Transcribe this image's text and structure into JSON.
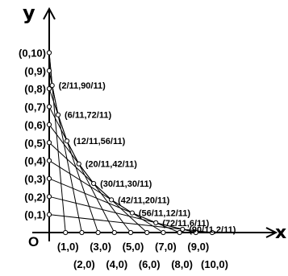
{
  "axes": {
    "x_label": "x",
    "y_label": "y",
    "origin_label": "O"
  },
  "x_points": [
    {
      "label": "(1,0)",
      "value": 1
    },
    {
      "label": "(2,0)",
      "value": 2
    },
    {
      "label": "(3,0)",
      "value": 3
    },
    {
      "label": "(4,0)",
      "value": 4
    },
    {
      "label": "(5,0)",
      "value": 5
    },
    {
      "label": "(6,0)",
      "value": 6
    },
    {
      "label": "(7,0)",
      "value": 7
    },
    {
      "label": "(8,0)",
      "value": 8
    },
    {
      "label": "(9,0)",
      "value": 9
    },
    {
      "label": "(10,0)",
      "value": 10
    }
  ],
  "y_points": [
    {
      "label": "(0,1)",
      "value": 1
    },
    {
      "label": "(0,2)",
      "value": 2
    },
    {
      "label": "(0,3)",
      "value": 3
    },
    {
      "label": "(0,4)",
      "value": 4
    },
    {
      "label": "(0,5)",
      "value": 5
    },
    {
      "label": "(0,6)",
      "value": 6
    },
    {
      "label": "(0,7)",
      "value": 7
    },
    {
      "label": "(0,8)",
      "value": 8
    },
    {
      "label": "(0,9)",
      "value": 9
    },
    {
      "label": "(0,10)",
      "value": 10
    }
  ],
  "segments": [
    {
      "from": [
        0,
        10
      ],
      "to": [
        1,
        0
      ]
    },
    {
      "from": [
        0,
        9
      ],
      "to": [
        2,
        0
      ]
    },
    {
      "from": [
        0,
        8
      ],
      "to": [
        3,
        0
      ]
    },
    {
      "from": [
        0,
        7
      ],
      "to": [
        4,
        0
      ]
    },
    {
      "from": [
        0,
        6
      ],
      "to": [
        5,
        0
      ]
    },
    {
      "from": [
        0,
        5
      ],
      "to": [
        6,
        0
      ]
    },
    {
      "from": [
        0,
        4
      ],
      "to": [
        7,
        0
      ]
    },
    {
      "from": [
        0,
        3
      ],
      "to": [
        8,
        0
      ]
    },
    {
      "from": [
        0,
        2
      ],
      "to": [
        9,
        0
      ]
    },
    {
      "from": [
        0,
        1
      ],
      "to": [
        10,
        0
      ]
    }
  ],
  "intersections": [
    {
      "label": "(2/11,90/11)",
      "x": 0.1818,
      "y": 8.1818
    },
    {
      "label": "(6/11,72/11)",
      "x": 0.5455,
      "y": 6.5455
    },
    {
      "label": "(12/11,56/11)",
      "x": 1.0909,
      "y": 5.0909
    },
    {
      "label": "(20/11,42/11)",
      "x": 1.8182,
      "y": 3.8182
    },
    {
      "label": "(30/11,30/11)",
      "x": 2.7273,
      "y": 2.7273
    },
    {
      "label": "(42/11,20/11)",
      "x": 3.8182,
      "y": 1.8182
    },
    {
      "label": "(56/11,12/11)",
      "x": 5.0909,
      "y": 1.0909
    },
    {
      "label": "(72/11,6/11)",
      "x": 6.5455,
      "y": 0.5455
    },
    {
      "label": "(90/11,2/11)",
      "x": 8.1818,
      "y": 0.1818
    }
  ]
}
